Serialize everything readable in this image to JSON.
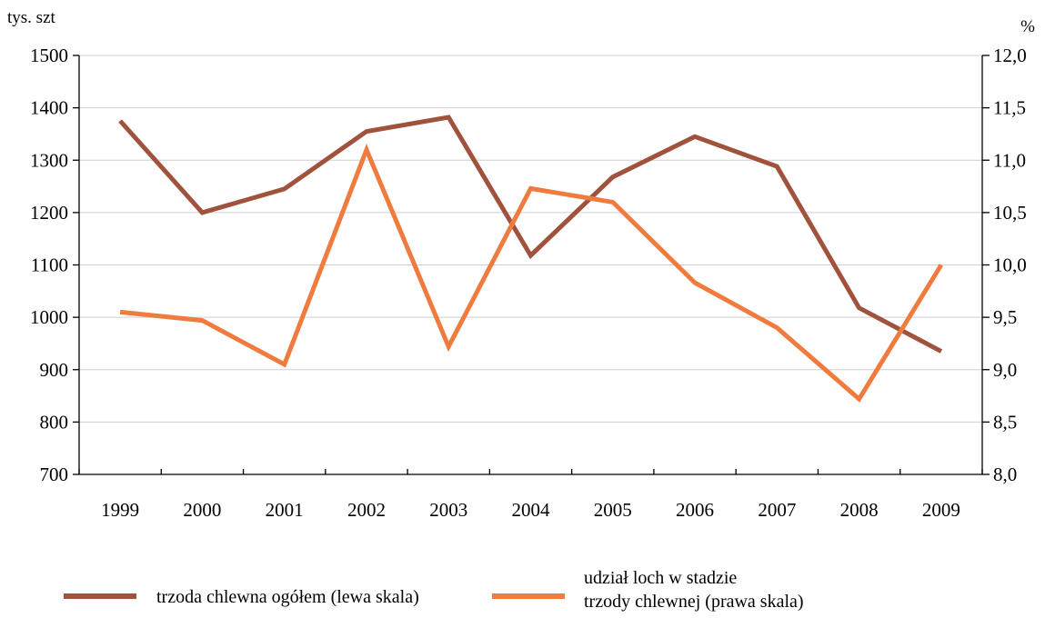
{
  "chart_data": {
    "type": "line",
    "categories": [
      "1999",
      "2000",
      "2001",
      "2002",
      "2003",
      "2004",
      "2005",
      "2006",
      "2007",
      "2008",
      "2009"
    ],
    "y_left": {
      "unit_label": "tys. szt",
      "ylim": [
        700,
        1500
      ],
      "ticks": [
        {
          "value": 700,
          "label": "700"
        },
        {
          "value": 800,
          "label": "800"
        },
        {
          "value": 900,
          "label": "900"
        },
        {
          "value": 1000,
          "label": "1000"
        },
        {
          "value": 1100,
          "label": "1100"
        },
        {
          "value": 1200,
          "label": "1200"
        },
        {
          "value": 1300,
          "label": "1300"
        },
        {
          "value": 1400,
          "label": "1400"
        },
        {
          "value": 1500,
          "label": "1500"
        }
      ]
    },
    "y_right": {
      "unit_label": "%",
      "ylim": [
        8.0,
        12.0
      ],
      "ticks": [
        {
          "value": 8.0,
          "label": "8,0"
        },
        {
          "value": 8.5,
          "label": "8,5"
        },
        {
          "value": 9.0,
          "label": "9,0"
        },
        {
          "value": 9.5,
          "label": "9,5"
        },
        {
          "value": 10.0,
          "label": "10,0"
        },
        {
          "value": 10.5,
          "label": "10,5"
        },
        {
          "value": 11.0,
          "label": "11,0"
        },
        {
          "value": 11.5,
          "label": "11,5"
        },
        {
          "value": 12.0,
          "label": "12,0"
        }
      ]
    },
    "grid": true,
    "legend_position": "bottom",
    "series": [
      {
        "name": "trzoda chlewna ogółem (lewa skala)",
        "axis": "left",
        "color": "#a0523d",
        "values": [
          1375,
          1200,
          1245,
          1355,
          1382,
          1118,
          1268,
          1345,
          1288,
          1018,
          935
        ]
      },
      {
        "name_lines": [
          "udział loch w stadzie",
          "trzody chlewnej (prawa skala)"
        ],
        "axis": "right",
        "color": "#f07b3f",
        "values": [
          9.55,
          9.47,
          9.05,
          11.1,
          9.22,
          10.73,
          10.6,
          9.83,
          9.4,
          8.72,
          10.0
        ]
      }
    ]
  }
}
